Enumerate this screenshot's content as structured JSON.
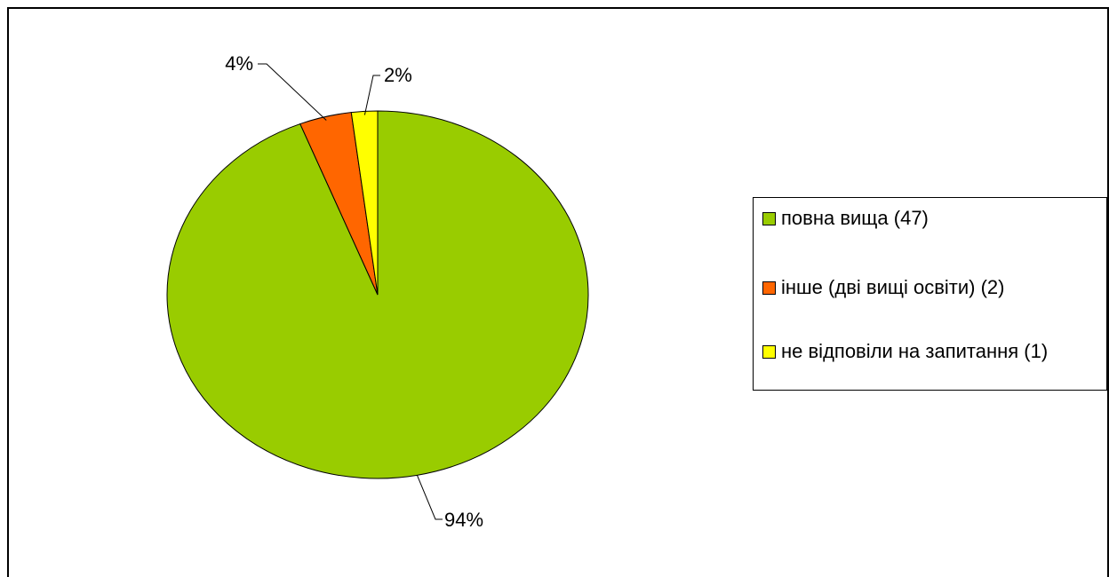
{
  "chart_data": {
    "type": "pie",
    "categories": [
      "повна вища (47)",
      "інше (дві вищі освіти) (2)",
      "не відповіли на запитання (1)"
    ],
    "values": [
      94,
      4,
      2
    ],
    "value_labels": [
      "94%",
      "4%",
      "2%"
    ],
    "colors": [
      "#99cc00",
      "#ff6600",
      "#ffff00"
    ],
    "legend": "right"
  }
}
